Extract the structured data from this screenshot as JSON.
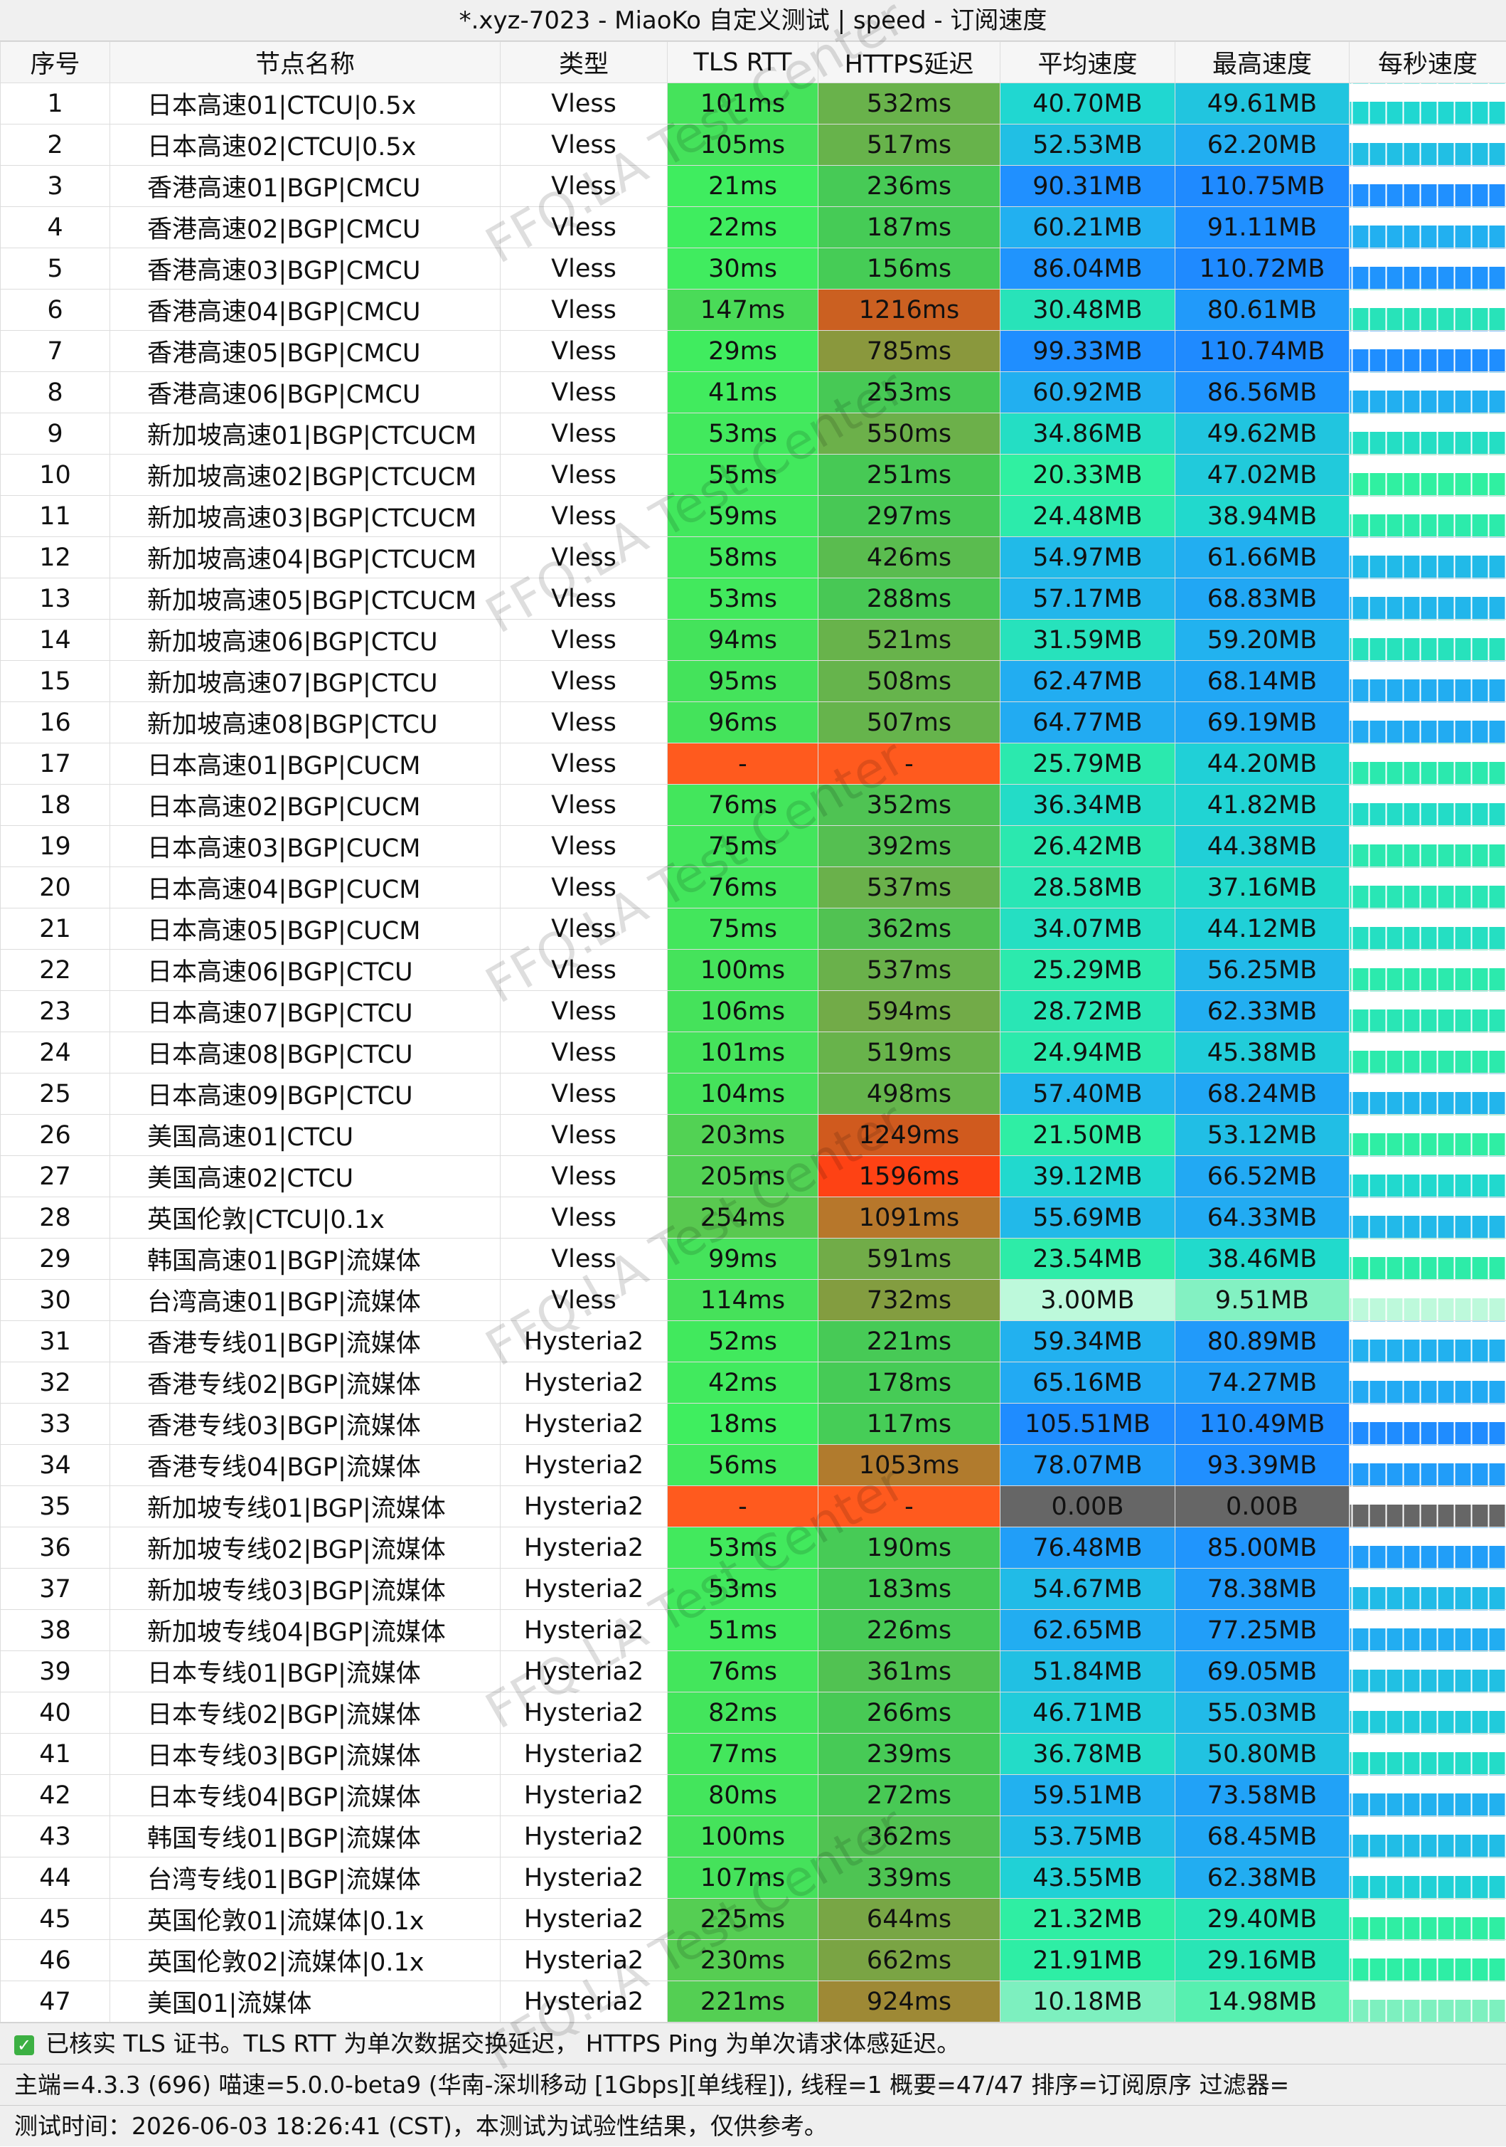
{
  "title": "*.xyz-7023 - MiaoKo 自定义测试 | speed - 订阅速度",
  "columns": [
    "序号",
    "节点名称",
    "类型",
    "TLS RTT",
    "HTTPS延迟",
    "平均速度",
    "最高速度",
    "每秒速度"
  ],
  "rows": [
    [
      "1",
      "日本高速01|CTCU|0.5x",
      "Vless",
      "101ms",
      "532ms",
      "40.70MB",
      "49.61MB"
    ],
    [
      "2",
      "日本高速02|CTCU|0.5x",
      "Vless",
      "105ms",
      "517ms",
      "52.53MB",
      "62.20MB"
    ],
    [
      "3",
      "香港高速01|BGP|CMCU",
      "Vless",
      "21ms",
      "236ms",
      "90.31MB",
      "110.75MB"
    ],
    [
      "4",
      "香港高速02|BGP|CMCU",
      "Vless",
      "22ms",
      "187ms",
      "60.21MB",
      "91.11MB"
    ],
    [
      "5",
      "香港高速03|BGP|CMCU",
      "Vless",
      "30ms",
      "156ms",
      "86.04MB",
      "110.72MB"
    ],
    [
      "6",
      "香港高速04|BGP|CMCU",
      "Vless",
      "147ms",
      "1216ms",
      "30.48MB",
      "80.61MB"
    ],
    [
      "7",
      "香港高速05|BGP|CMCU",
      "Vless",
      "29ms",
      "785ms",
      "99.33MB",
      "110.74MB"
    ],
    [
      "8",
      "香港高速06|BGP|CMCU",
      "Vless",
      "41ms",
      "253ms",
      "60.92MB",
      "86.56MB"
    ],
    [
      "9",
      "新加坡高速01|BGP|CTCUCM",
      "Vless",
      "53ms",
      "550ms",
      "34.86MB",
      "49.62MB"
    ],
    [
      "10",
      "新加坡高速02|BGP|CTCUCM",
      "Vless",
      "55ms",
      "251ms",
      "20.33MB",
      "47.02MB"
    ],
    [
      "11",
      "新加坡高速03|BGP|CTCUCM",
      "Vless",
      "59ms",
      "297ms",
      "24.48MB",
      "38.94MB"
    ],
    [
      "12",
      "新加坡高速04|BGP|CTCUCM",
      "Vless",
      "58ms",
      "426ms",
      "54.97MB",
      "61.66MB"
    ],
    [
      "13",
      "新加坡高速05|BGP|CTCUCM",
      "Vless",
      "53ms",
      "288ms",
      "57.17MB",
      "68.83MB"
    ],
    [
      "14",
      "新加坡高速06|BGP|CTCU",
      "Vless",
      "94ms",
      "521ms",
      "31.59MB",
      "59.20MB"
    ],
    [
      "15",
      "新加坡高速07|BGP|CTCU",
      "Vless",
      "95ms",
      "508ms",
      "62.47MB",
      "68.14MB"
    ],
    [
      "16",
      "新加坡高速08|BGP|CTCU",
      "Vless",
      "96ms",
      "507ms",
      "64.77MB",
      "69.19MB"
    ],
    [
      "17",
      "日本高速01|BGP|CUCM",
      "Vless",
      "-",
      "-",
      "25.79MB",
      "44.20MB"
    ],
    [
      "18",
      "日本高速02|BGP|CUCM",
      "Vless",
      "76ms",
      "352ms",
      "36.34MB",
      "41.82MB"
    ],
    [
      "19",
      "日本高速03|BGP|CUCM",
      "Vless",
      "75ms",
      "392ms",
      "26.42MB",
      "44.38MB"
    ],
    [
      "20",
      "日本高速04|BGP|CUCM",
      "Vless",
      "76ms",
      "537ms",
      "28.58MB",
      "37.16MB"
    ],
    [
      "21",
      "日本高速05|BGP|CUCM",
      "Vless",
      "75ms",
      "362ms",
      "34.07MB",
      "44.12MB"
    ],
    [
      "22",
      "日本高速06|BGP|CTCU",
      "Vless",
      "100ms",
      "537ms",
      "25.29MB",
      "56.25MB"
    ],
    [
      "23",
      "日本高速07|BGP|CTCU",
      "Vless",
      "106ms",
      "594ms",
      "28.72MB",
      "62.33MB"
    ],
    [
      "24",
      "日本高速08|BGP|CTCU",
      "Vless",
      "101ms",
      "519ms",
      "24.94MB",
      "45.38MB"
    ],
    [
      "25",
      "日本高速09|BGP|CTCU",
      "Vless",
      "104ms",
      "498ms",
      "57.40MB",
      "68.24MB"
    ],
    [
      "26",
      "美国高速01|CTCU",
      "Vless",
      "203ms",
      "1249ms",
      "21.50MB",
      "53.12MB"
    ],
    [
      "27",
      "美国高速02|CTCU",
      "Vless",
      "205ms",
      "1596ms",
      "39.12MB",
      "66.52MB"
    ],
    [
      "28",
      "英国伦敦|CTCU|0.1x",
      "Vless",
      "254ms",
      "1091ms",
      "55.69MB",
      "64.33MB"
    ],
    [
      "29",
      "韩国高速01|BGP|流媒体",
      "Vless",
      "99ms",
      "591ms",
      "23.54MB",
      "38.46MB"
    ],
    [
      "30",
      "台湾高速01|BGP|流媒体",
      "Vless",
      "114ms",
      "732ms",
      "3.00MB",
      "9.51MB"
    ],
    [
      "31",
      "香港专线01|BGP|流媒体",
      "Hysteria2",
      "52ms",
      "221ms",
      "59.34MB",
      "80.89MB"
    ],
    [
      "32",
      "香港专线02|BGP|流媒体",
      "Hysteria2",
      "42ms",
      "178ms",
      "65.16MB",
      "74.27MB"
    ],
    [
      "33",
      "香港专线03|BGP|流媒体",
      "Hysteria2",
      "18ms",
      "117ms",
      "105.51MB",
      "110.49MB"
    ],
    [
      "34",
      "香港专线04|BGP|流媒体",
      "Hysteria2",
      "56ms",
      "1053ms",
      "78.07MB",
      "93.39MB"
    ],
    [
      "35",
      "新加坡专线01|BGP|流媒体",
      "Hysteria2",
      "-",
      "-",
      "0.00B",
      "0.00B"
    ],
    [
      "36",
      "新加坡专线02|BGP|流媒体",
      "Hysteria2",
      "53ms",
      "190ms",
      "76.48MB",
      "85.00MB"
    ],
    [
      "37",
      "新加坡专线03|BGP|流媒体",
      "Hysteria2",
      "53ms",
      "183ms",
      "54.67MB",
      "78.38MB"
    ],
    [
      "38",
      "新加坡专线04|BGP|流媒体",
      "Hysteria2",
      "51ms",
      "226ms",
      "62.65MB",
      "77.25MB"
    ],
    [
      "39",
      "日本专线01|BGP|流媒体",
      "Hysteria2",
      "76ms",
      "361ms",
      "51.84MB",
      "69.05MB"
    ],
    [
      "40",
      "日本专线02|BGP|流媒体",
      "Hysteria2",
      "82ms",
      "266ms",
      "46.71MB",
      "55.03MB"
    ],
    [
      "41",
      "日本专线03|BGP|流媒体",
      "Hysteria2",
      "77ms",
      "239ms",
      "36.78MB",
      "50.80MB"
    ],
    [
      "42",
      "日本专线04|BGP|流媒体",
      "Hysteria2",
      "80ms",
      "272ms",
      "59.51MB",
      "73.58MB"
    ],
    [
      "43",
      "韩国专线01|BGP|流媒体",
      "Hysteria2",
      "100ms",
      "362ms",
      "53.75MB",
      "68.45MB"
    ],
    [
      "44",
      "台湾专线01|BGP|流媒体",
      "Hysteria2",
      "107ms",
      "339ms",
      "43.55MB",
      "62.38MB"
    ],
    [
      "45",
      "英国伦敦01|流媒体|0.1x",
      "Hysteria2",
      "225ms",
      "644ms",
      "21.32MB",
      "29.40MB"
    ],
    [
      "46",
      "英国伦敦02|流媒体|0.1x",
      "Hysteria2",
      "230ms",
      "662ms",
      "21.91MB",
      "29.16MB"
    ],
    [
      "47",
      "美国01|流媒体",
      "Hysteria2",
      "221ms",
      "924ms",
      "10.18MB",
      "14.98MB"
    ]
  ],
  "footer": [
    "已核实 TLS 证书。TLS RTT 为单次数据交换延迟， HTTPS Ping 为单次请求体感延迟。",
    "主端=4.3.3 (696) 喵速=5.0.0-beta9 (华南-深圳移动 [1Gbps][单线程]), 线程=1 概要=47/47 排序=订阅原序 过滤器=",
    "测试时间：2026-06-03 18:26:41 (CST)，本测试为试验性结果，仅供参考。"
  ],
  "watermark": "FFQ.LA Test Center"
}
